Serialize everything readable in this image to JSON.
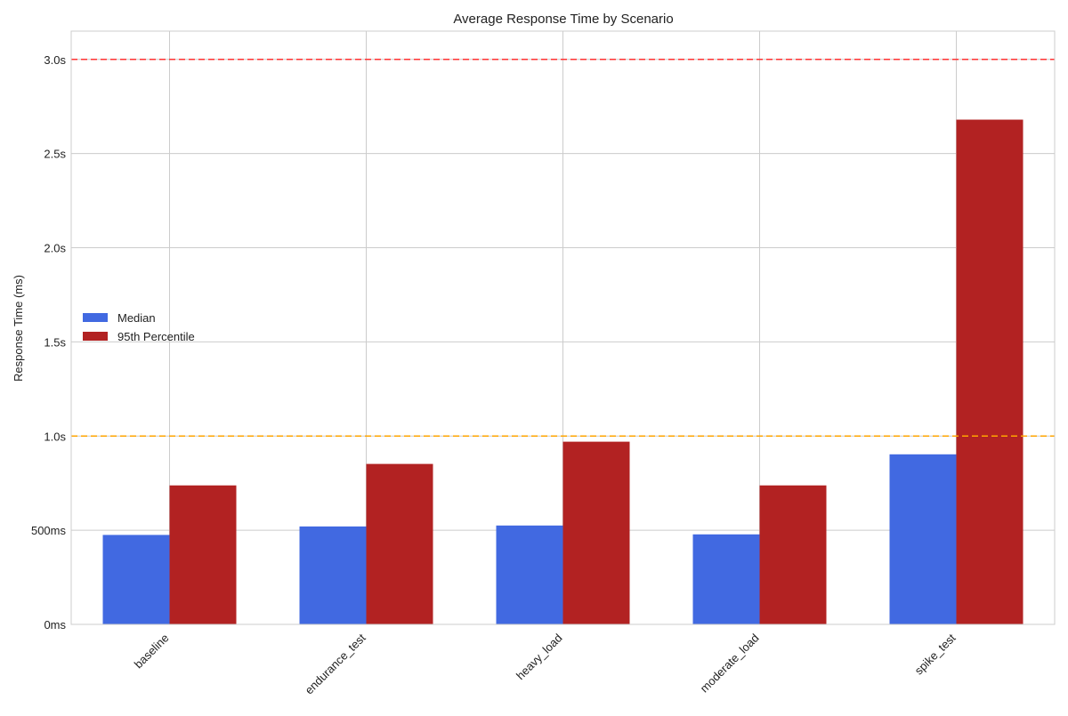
{
  "chart_data": {
    "type": "bar",
    "title": "Average Response Time by Scenario",
    "xlabel": "",
    "ylabel": "Response Time (ms)",
    "categories": [
      "baseline",
      "endurance_test",
      "heavy_load",
      "moderate_load",
      "spike_test"
    ],
    "series": [
      {
        "name": "Median",
        "color": "#4169E1",
        "values": [
          475,
          520,
          525,
          478,
          903
        ]
      },
      {
        "name": "95th Percentile",
        "color": "#B22222",
        "values": [
          738,
          852,
          970,
          738,
          2680
        ]
      }
    ],
    "ylim": [
      0,
      3150
    ],
    "yticks": [
      {
        "value": 0,
        "label": "0ms"
      },
      {
        "value": 500,
        "label": "500ms"
      },
      {
        "value": 1000,
        "label": "1.0s"
      },
      {
        "value": 1500,
        "label": "1.5s"
      },
      {
        "value": 2000,
        "label": "2.0s"
      },
      {
        "value": 2500,
        "label": "2.5s"
      },
      {
        "value": 3000,
        "label": "3.0s"
      }
    ],
    "reference_lines": [
      {
        "value": 1000,
        "color": "#FFA500",
        "style": "dashed"
      },
      {
        "value": 3000,
        "color": "#FF3333",
        "style": "dashed"
      }
    ],
    "grid": true,
    "legend_position": "center-left"
  }
}
